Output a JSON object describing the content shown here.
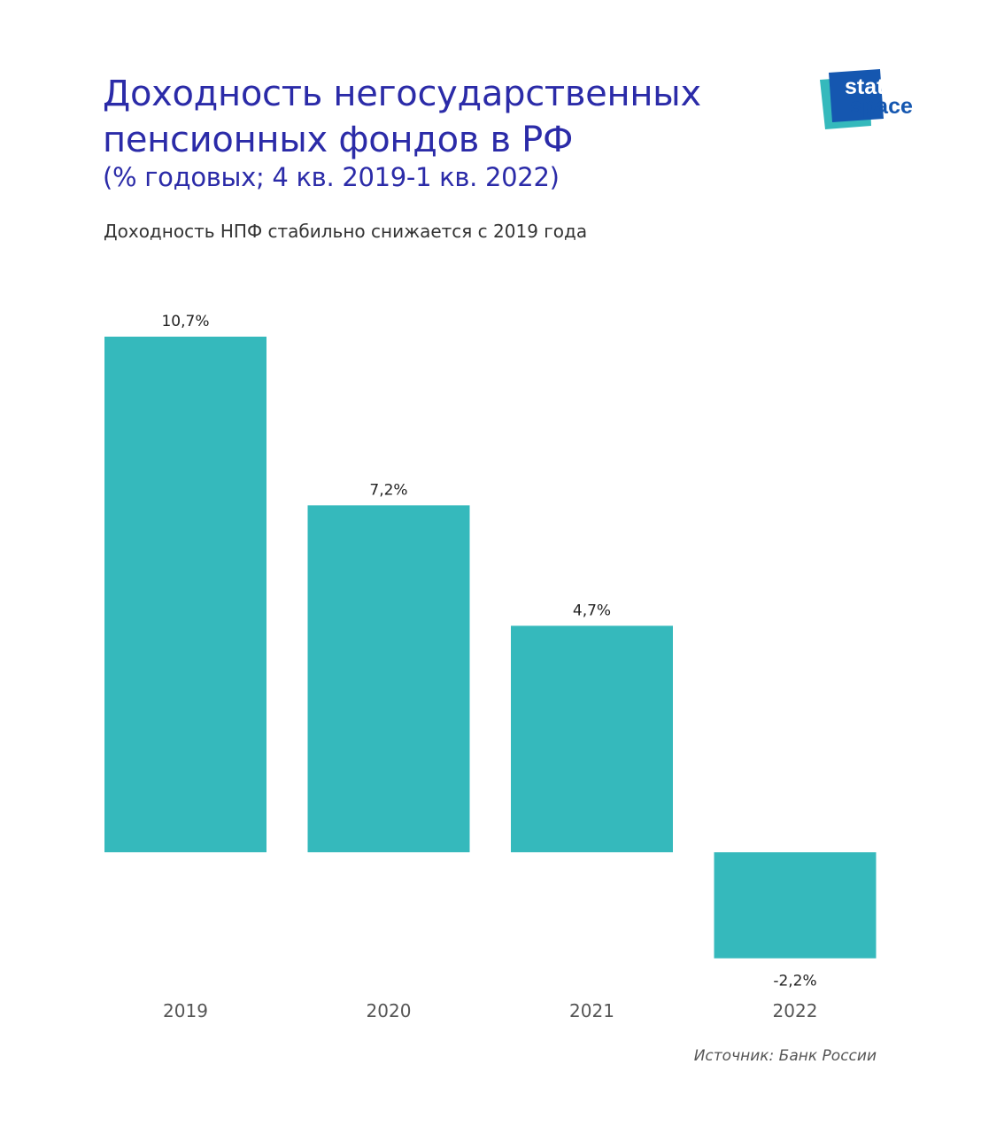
{
  "header": {
    "title_lines": [
      "Доходность негосударственных",
      "пенсионных фондов в РФ"
    ],
    "subtitle": "(% годовых; 4 кв. 2019-1 кв. 2022)",
    "lead": "Доходность НПФ стабильно снижается с 2019 года"
  },
  "logo": {
    "line1": "stat",
    "line2": "space",
    "colors": {
      "teal": "#35b9bc",
      "blue": "#1557b0",
      "text": "#ffffff"
    }
  },
  "footer": {
    "source": "Источник: Банк России"
  },
  "chart_data": {
    "type": "bar",
    "categories": [
      "2019",
      "2020",
      "2021",
      "2022"
    ],
    "values": [
      10.7,
      7.2,
      4.7,
      -2.2
    ],
    "value_labels": [
      "10,7%",
      "7,2%",
      "4,7%",
      "-2,2%"
    ],
    "ylim": [
      -2.2,
      10.7
    ],
    "grid": false,
    "legend": "none",
    "bar_color": "#35b9bc",
    "label_color": "#222222",
    "category_color": "#555555"
  }
}
